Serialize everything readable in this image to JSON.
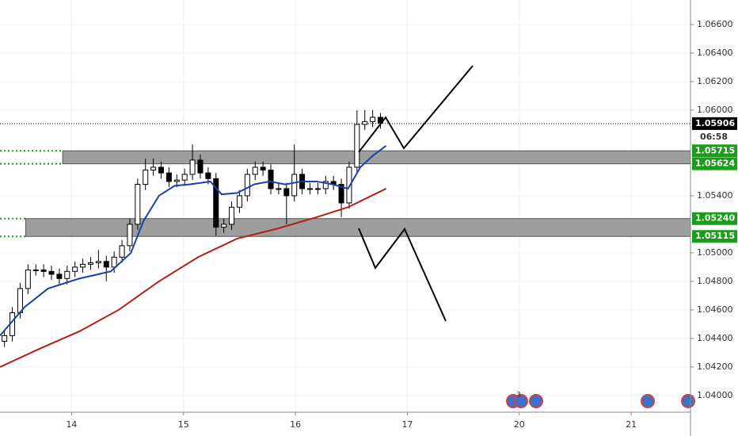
{
  "chart_data": {
    "type": "candlestick",
    "x": [
      -0.6,
      -0.53,
      -0.46,
      -0.39,
      -0.32,
      -0.25,
      -0.18,
      -0.11,
      -0.04,
      0.03,
      0.1,
      0.17,
      0.24,
      0.31,
      0.38,
      0.45,
      0.52,
      0.59,
      0.66,
      0.73,
      0.8,
      0.87,
      0.94,
      1.01,
      1.08,
      1.15,
      1.22,
      1.29,
      1.36,
      1.43,
      1.5,
      1.57,
      1.64,
      1.71,
      1.78,
      1.85,
      1.92,
      1.99,
      2.06,
      2.13,
      2.2,
      2.27,
      2.34,
      2.41,
      2.48,
      2.55,
      2.62,
      2.69,
      2.76
    ],
    "open": [
      1.0438,
      1.0442,
      1.0458,
      1.0475,
      1.0488,
      1.0488,
      1.0487,
      1.0485,
      1.0482,
      1.0487,
      1.049,
      1.0492,
      1.0493,
      1.0494,
      1.049,
      1.0497,
      1.0505,
      1.052,
      1.0548,
      1.0558,
      1.056,
      1.0556,
      1.055,
      1.0551,
      1.0555,
      1.0565,
      1.0556,
      1.0552,
      1.0518,
      1.052,
      1.0532,
      1.054,
      1.0555,
      1.056,
      1.0558,
      1.0545,
      1.0545,
      1.054,
      1.0555,
      1.0545,
      1.0545,
      1.0545,
      1.055,
      1.0548,
      1.0535,
      1.056,
      1.059,
      1.0592,
      1.0595
    ],
    "high": [
      1.0446,
      1.0462,
      1.0479,
      1.0492,
      1.0492,
      1.0492,
      1.0491,
      1.0489,
      1.0491,
      1.0494,
      1.0496,
      1.0497,
      1.0502,
      1.0498,
      1.0501,
      1.0509,
      1.0524,
      1.0552,
      1.0566,
      1.0566,
      1.0564,
      1.056,
      1.0555,
      1.0559,
      1.0576,
      1.0569,
      1.056,
      1.0556,
      1.0524,
      1.0536,
      1.0544,
      1.0559,
      1.0564,
      1.0564,
      1.0562,
      1.0549,
      1.0549,
      1.0576,
      1.0559,
      1.0549,
      1.0549,
      1.0554,
      1.0554,
      1.0552,
      1.0564,
      1.06,
      1.06,
      1.06,
      1.0598
    ],
    "low": [
      1.0434,
      1.0438,
      1.0454,
      1.0471,
      1.0484,
      1.0483,
      1.0481,
      1.0478,
      1.0478,
      1.0483,
      1.0486,
      1.0488,
      1.0489,
      1.048,
      1.0486,
      1.0493,
      1.0501,
      1.0516,
      1.0544,
      1.0554,
      1.0552,
      1.0546,
      1.0546,
      1.0547,
      1.0551,
      1.0552,
      1.0548,
      1.0512,
      1.0514,
      1.0516,
      1.0528,
      1.0536,
      1.0551,
      1.0554,
      1.0541,
      1.0541,
      1.052,
      1.0536,
      1.0541,
      1.0541,
      1.0541,
      1.0541,
      1.0544,
      1.0525,
      1.0531,
      1.0556,
      1.0586,
      1.0588,
      1.0587
    ],
    "close": [
      1.0442,
      1.0458,
      1.0475,
      1.0488,
      1.0488,
      1.0487,
      1.0485,
      1.0482,
      1.0487,
      1.049,
      1.0492,
      1.0493,
      1.0494,
      1.049,
      1.0497,
      1.0505,
      1.052,
      1.0548,
      1.0558,
      1.056,
      1.0556,
      1.055,
      1.0551,
      1.0555,
      1.0565,
      1.0556,
      1.0552,
      1.0518,
      1.052,
      1.0532,
      1.054,
      1.0555,
      1.056,
      1.0558,
      1.0545,
      1.0545,
      1.054,
      1.0555,
      1.0545,
      1.0545,
      1.0545,
      1.055,
      1.0548,
      1.0535,
      1.056,
      1.059,
      1.0592,
      1.0595,
      1.0591
    ],
    "up_color": "#ffffff",
    "down_color": "#000000",
    "lines": [
      {
        "color": "#1c3fa8",
        "x": [
          -0.64,
          -0.42,
          -0.21,
          0.07,
          0.35,
          0.53,
          0.64,
          0.78,
          0.92,
          1.06,
          1.24,
          1.34,
          1.48,
          1.63,
          1.77,
          1.91,
          2.05,
          2.19,
          2.33,
          2.47,
          2.58,
          2.69,
          2.81
        ],
        "values": [
          1.0442,
          1.0462,
          1.0475,
          1.0482,
          1.0487,
          1.05,
          1.0522,
          1.054,
          1.0547,
          1.0548,
          1.055,
          1.0541,
          1.0542,
          1.0548,
          1.055,
          1.0548,
          1.055,
          1.055,
          1.0548,
          1.0545,
          1.056,
          1.0568,
          1.0575
        ]
      },
      {
        "color": "#b71c1c",
        "x": [
          -0.64,
          -0.28,
          0.07,
          0.42,
          0.78,
          1.13,
          1.48,
          1.84,
          2.19,
          2.47,
          2.81
        ],
        "values": [
          1.042,
          1.0433,
          1.0445,
          1.046,
          1.048,
          1.0497,
          1.051,
          1.0517,
          1.0525,
          1.0532,
          1.0545
        ]
      }
    ],
    "levels": [
      {
        "value": 1.05715,
        "label": "1.05715"
      },
      {
        "value": 1.05624,
        "label": "1.05624"
      },
      {
        "value": 1.0524,
        "label": "1.05240"
      },
      {
        "value": 1.05115,
        "label": "1.05115"
      }
    ],
    "zones": [
      {
        "x_start": -0.08
      },
      {
        "x_start": -0.41
      }
    ],
    "level_color": "#1a9e1a",
    "last_price": {
      "value": 1.05906,
      "label": "1.05906"
    },
    "countdown": "06:58",
    "event_badge": "3",
    "xlim": [
      -0.64,
      5.53
    ],
    "ylim": [
      1.03883,
      1.06772
    ],
    "xticks": [
      {
        "value": 0,
        "label": "14"
      },
      {
        "value": 1,
        "label": "15"
      },
      {
        "value": 2,
        "label": "16"
      },
      {
        "value": 3,
        "label": "17"
      },
      {
        "value": 4,
        "label": "20"
      },
      {
        "value": 5,
        "label": "21"
      }
    ],
    "yticks": [
      {
        "value": 1.04,
        "label": "1.04000"
      },
      {
        "value": 1.042,
        "label": "1.04200"
      },
      {
        "value": 1.044,
        "label": "1.04400"
      },
      {
        "value": 1.046,
        "label": "1.04600"
      },
      {
        "value": 1.048,
        "label": "1.04800"
      },
      {
        "value": 1.05,
        "label": "1.05000"
      },
      {
        "value": 1.054,
        "label": "1.05400"
      },
      {
        "value": 1.06,
        "label": "1.06000"
      },
      {
        "value": 1.062,
        "label": "1.06200"
      },
      {
        "value": 1.064,
        "label": "1.06400"
      },
      {
        "value": 1.066,
        "label": "1.06600"
      }
    ],
    "grid": true
  }
}
